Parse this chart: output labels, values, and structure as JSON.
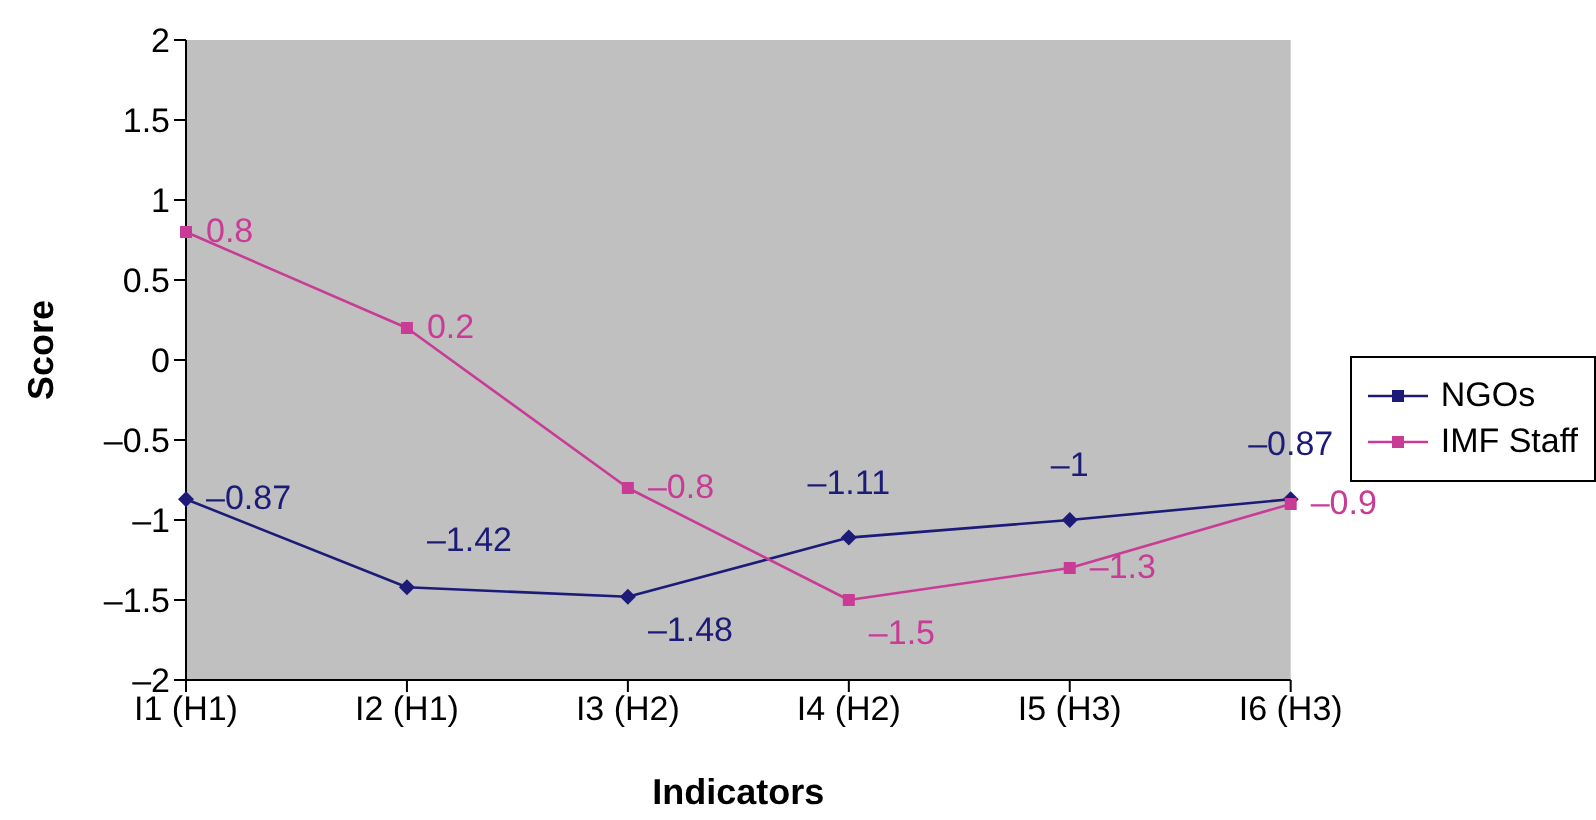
{
  "chart_data": {
    "type": "line",
    "xlabel": "Indicators",
    "ylabel": "Score",
    "categories": [
      "I1 (H1)",
      "I2 (H1)",
      "I3 (H2)",
      "I4 (H2)",
      "I5 (H3)",
      "I6 (H3)"
    ],
    "series": [
      {
        "name": "NGOs",
        "color": "#1c1c78",
        "marker": "diamond",
        "values": [
          -0.87,
          -1.42,
          -1.48,
          -1.11,
          -1,
          -0.87
        ],
        "value_labels": [
          "–0.87",
          "–1.42",
          "–1.48",
          "–1.11",
          "–1",
          "–0.87"
        ]
      },
      {
        "name": "IMF Staff",
        "color": "#c83c96",
        "marker": "square",
        "values": [
          0.8,
          0.2,
          -0.8,
          -1.5,
          -1.3,
          -0.9
        ],
        "value_labels": [
          "0.8",
          "0.2",
          "–0.8",
          "–1.5",
          "–1.3",
          "–0.9"
        ]
      }
    ],
    "ylim": [
      -2,
      2
    ],
    "yticks": [
      {
        "value": -2,
        "label": "–2"
      },
      {
        "value": -1.5,
        "label": "–1.5"
      },
      {
        "value": -1,
        "label": "–1"
      },
      {
        "value": -0.5,
        "label": "–0.5"
      },
      0,
      0.5,
      1,
      1.5,
      2
    ],
    "grid": false,
    "legend": "right",
    "line_style": "solid"
  }
}
